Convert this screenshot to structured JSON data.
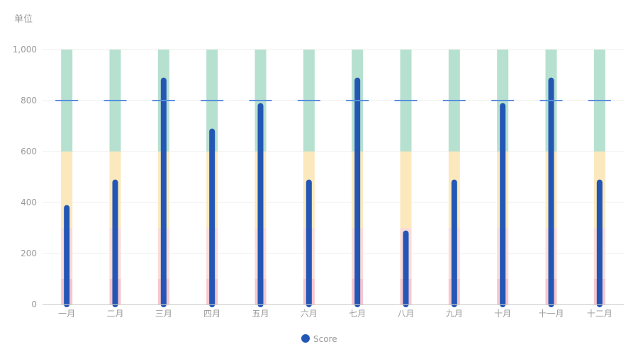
{
  "chart_data": {
    "type": "bar",
    "ylabel": "单位",
    "ylim": [
      0,
      1000
    ],
    "yticks": [
      "0",
      "200",
      "400",
      "600",
      "800",
      "1,000"
    ],
    "categories": [
      "一月",
      "二月",
      "三月",
      "四月",
      "五月",
      "六月",
      "七月",
      "八月",
      "九月",
      "十月",
      "十一月",
      "十二月"
    ],
    "series": [
      {
        "name": "Score",
        "values": [
          390,
          490,
          890,
          690,
          790,
          490,
          890,
          290,
          490,
          790,
          890,
          490
        ]
      }
    ],
    "target": [
      800,
      800,
      800,
      800,
      800,
      800,
      800,
      800,
      800,
      800,
      800,
      800
    ],
    "ranges": [
      {
        "from": 0,
        "to": 100,
        "color": "#f6c6cf"
      },
      {
        "from": 100,
        "to": 300,
        "color": "#fadbd6"
      },
      {
        "from": 300,
        "to": 600,
        "color": "#fbe9bd"
      },
      {
        "from": 600,
        "to": 1000,
        "color": "#b6e0cf"
      }
    ],
    "legend_position": "bottom-center"
  },
  "colors": {
    "score": "#2457b5",
    "target": "#5b8fde",
    "axis_text": "#9a9a9a",
    "grid": "#eeeeee"
  }
}
